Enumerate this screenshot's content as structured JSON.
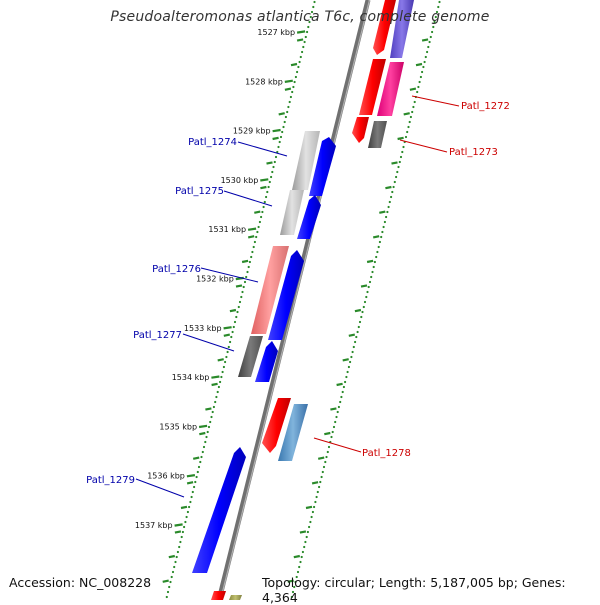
{
  "title": "Pseudoalteromonas atlantica T6c, complete genome",
  "footer": {
    "accession": "Accession: NC_008228",
    "topology": "Topology: circular; Length: 5,187,005 bp; Genes: 4,364"
  },
  "colors": {
    "backbone": "#8a8a8a",
    "tick_dots": "#2a8a2a",
    "tick_dash": "#2a8a2a",
    "forward_label": "#0000aa",
    "reverse_label": "#cc0000"
  },
  "ticks": [
    "1527 kbp",
    "1528 kbp",
    "1529 kbp",
    "1530 kbp",
    "1531 kbp",
    "1532 kbp",
    "1533 kbp",
    "1534 kbp",
    "1535 kbp",
    "1536 kbp",
    "1537 kbp"
  ],
  "genes": [
    {
      "label": "Patl_1272",
      "strand": "reverse"
    },
    {
      "label": "Patl_1273",
      "strand": "reverse"
    },
    {
      "label": "Patl_1274",
      "strand": "forward"
    },
    {
      "label": "Patl_1275",
      "strand": "forward"
    },
    {
      "label": "Patl_1276",
      "strand": "forward"
    },
    {
      "label": "Patl_1277",
      "strand": "forward"
    },
    {
      "label": "Patl_1278",
      "strand": "reverse"
    },
    {
      "label": "Patl_1279",
      "strand": "forward"
    }
  ]
}
